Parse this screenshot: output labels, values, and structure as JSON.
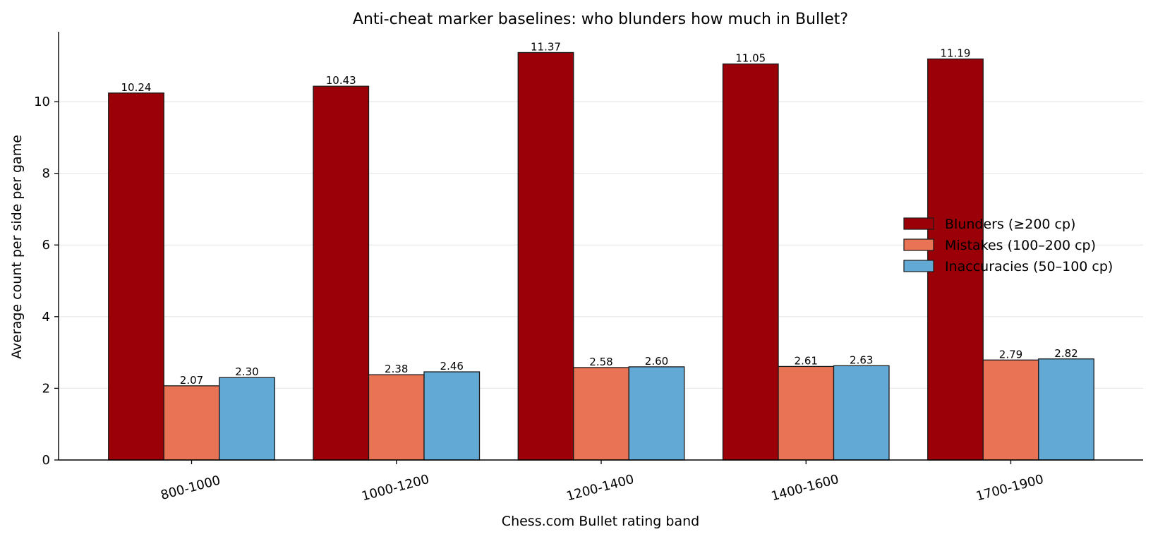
{
  "chart_data": {
    "type": "bar",
    "title": "Anti-cheat marker baselines: who blunders how much in Bullet?",
    "xlabel": "Chess.com Bullet rating band",
    "ylabel": "Average count per side per game",
    "categories": [
      "800-1000",
      "1000-1200",
      "1200-1400",
      "1400-1600",
      "1700-1900"
    ],
    "series": [
      {
        "name": "Blunders (≥200 cp)",
        "color": "#9b0008",
        "values": [
          10.24,
          10.43,
          11.37,
          11.05,
          11.19
        ],
        "labels": [
          "10.24",
          "10.43",
          "11.37",
          "11.05",
          "11.19"
        ]
      },
      {
        "name": "Mistakes (100–200 cp)",
        "color": "#e87355",
        "values": [
          2.07,
          2.38,
          2.58,
          2.61,
          2.79
        ],
        "labels": [
          "2.07",
          "2.38",
          "2.58",
          "2.61",
          "2.79"
        ]
      },
      {
        "name": "Inaccuracies (50–100 cp)",
        "color": "#62aad5",
        "values": [
          2.3,
          2.46,
          2.6,
          2.63,
          2.82
        ],
        "labels": [
          "2.30",
          "2.46",
          "2.60",
          "2.63",
          "2.82"
        ]
      }
    ],
    "yticks": [
      0,
      2,
      4,
      6,
      8,
      10
    ],
    "ylim": [
      0,
      11.95
    ],
    "grid": "horizontal",
    "legend": "center-right",
    "xtick_rotation": "rotated"
  }
}
